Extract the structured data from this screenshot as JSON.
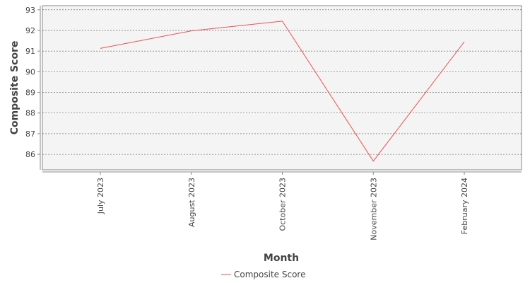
{
  "chart_data": {
    "type": "line",
    "title": "",
    "xlabel": "Month",
    "ylabel": "Composite Score",
    "categories": [
      "July 2023",
      "August 2023",
      "October 2023",
      "November 2023",
      "February 2024"
    ],
    "series": [
      {
        "name": "Composite Score",
        "values": [
          91.13,
          91.98,
          92.45,
          85.67,
          91.45
        ],
        "color": "#f05050"
      }
    ],
    "y_ticks": [
      86,
      87,
      88,
      89,
      90,
      91,
      92,
      93
    ],
    "ylim": [
      85.25,
      93.2
    ],
    "grid": true,
    "legend": "bottom-center",
    "plot_background": "#f4f4f4"
  }
}
